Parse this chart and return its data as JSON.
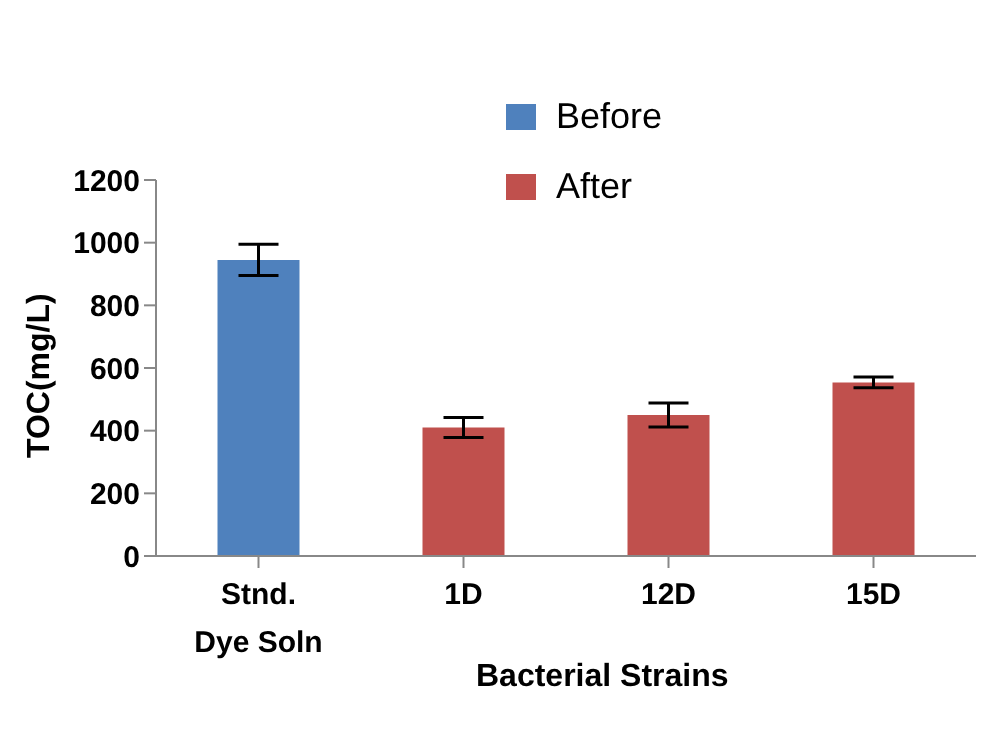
{
  "chart_data": {
    "type": "bar",
    "categories": [
      "Stnd. Dye Soln",
      "1D",
      "12D",
      "15D"
    ],
    "series": [
      {
        "name": "Before",
        "color": "#4f81bd",
        "values": [
          945,
          null,
          null,
          null
        ],
        "errors": [
          50,
          null,
          null,
          null
        ]
      },
      {
        "name": "After",
        "color": "#c0504d",
        "values": [
          null,
          410,
          450,
          554
        ],
        "errors": [
          null,
          32,
          38,
          17
        ]
      }
    ],
    "xlabel": "Bacterial Strains",
    "ylabel": "TOC(mg/L)",
    "ylim": [
      0,
      1200
    ],
    "yticks": [
      0,
      200,
      400,
      600,
      800,
      1000,
      1200
    ],
    "grid": false,
    "legend": "top right"
  }
}
